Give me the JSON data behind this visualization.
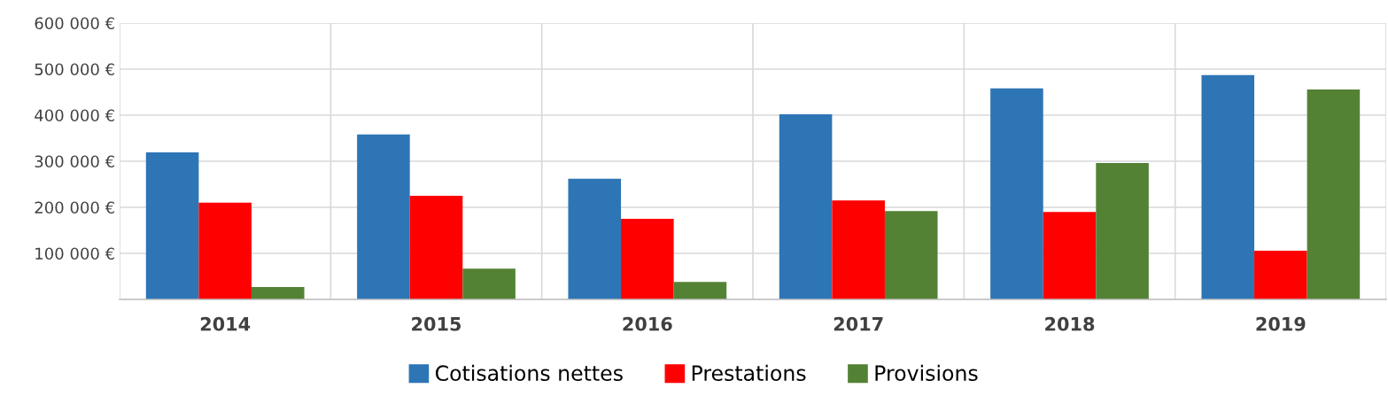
{
  "chart_data": {
    "type": "bar",
    "categories": [
      "2014",
      "2015",
      "2016",
      "2017",
      "2018",
      "2019"
    ],
    "series": [
      {
        "name": "Cotisations nettes",
        "color": "#2e75b6",
        "values": [
          319000,
          358000,
          262000,
          402000,
          458000,
          487000
        ]
      },
      {
        "name": "Prestations",
        "color": "#ff0000",
        "values": [
          210000,
          225000,
          175000,
          215000,
          190000,
          106000
        ]
      },
      {
        "name": "Provisions",
        "color": "#548235",
        "values": [
          27000,
          67000,
          38000,
          192000,
          296000,
          456000
        ]
      }
    ],
    "ylim": [
      0,
      600000
    ],
    "yticks": [
      {
        "value": 0,
        "label": null
      },
      {
        "value": 100000,
        "label": "100 000 €"
      },
      {
        "value": 200000,
        "label": "200 000 €"
      },
      {
        "value": 300000,
        "label": "300 000 €"
      },
      {
        "value": 400000,
        "label": "400 000 €"
      },
      {
        "value": 500000,
        "label": "500 000 €"
      },
      {
        "value": 600000,
        "label": "600 000 €"
      }
    ],
    "grid": true,
    "legend": "bottom"
  }
}
